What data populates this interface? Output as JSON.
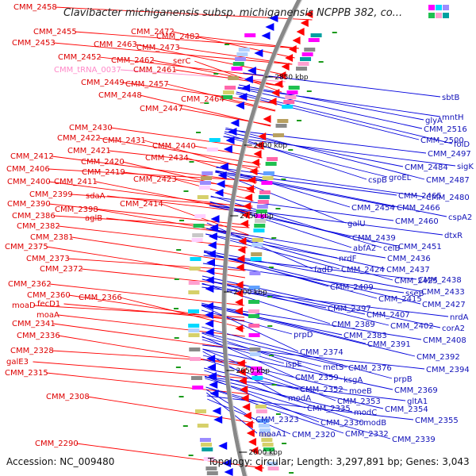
{
  "title": "Clavibacter michiganensis subsp. michiganensis NCPPB 382, co...",
  "footer": {
    "accession": "Accession: NC_009480",
    "info": "Topology: circular; Length: 3,297,891 bp; Genes: 3,043"
  },
  "scale_labels": [
    "2850 kbp",
    "2800 kbp",
    "2750 kbp",
    "2700 kbp",
    "2650 kbp",
    "2600 kbp"
  ],
  "colors": {
    "forward_strand": "#ff0000",
    "reverse_strand": "#0000ff",
    "left_label": "#dd0000",
    "right_label": "#1010b8",
    "rna_label": "#ff88c8",
    "backbone": "#888888"
  },
  "left_labels": [
    "CMM_2458",
    "CMM_2455",
    "CMM_2453",
    "CMM_2472",
    "CMM_2463",
    "CMM_2482",
    "CMM_2473",
    "CMM_2452",
    "CMM_2462",
    "serC",
    "CMM_tRNA_0037",
    "CMM_2461",
    "CMM_2449",
    "CMM_2457",
    "CMM_2448",
    "CMM_2464",
    "CMM_2447",
    "CMM_2430",
    "CMM_2422",
    "CMM_2431",
    "CMM_2440",
    "CMM_2421",
    "CMM_2434",
    "CMM_2412",
    "CMM_2420",
    "CMM_2406",
    "CMM_2419",
    "CMM_2423",
    "CMM_2400",
    "CMM_2411",
    "CMM_2399",
    "sdaA",
    "CMM_2390",
    "CMM_2398",
    "CMM_2414",
    "CMM_2386",
    "aglB",
    "CMM_2382",
    "CMM_2381",
    "CMM_2375",
    "CMM_2373",
    "CMM_2372",
    "CMM_2362",
    "CMM_2360",
    "CMM_2366",
    "moaD",
    "fecD1",
    "moaA",
    "CMM_2341",
    "CMM_2336",
    "CMM_2328",
    "galE3",
    "CMM_2315",
    "CMM_2308",
    "CMM_2290"
  ],
  "right_labels": [
    "sbtB",
    "mntH",
    "glyA",
    "CMM_2516",
    "CMM_2500",
    "folD",
    "CMM_2497",
    "sigK",
    "CMM_2484",
    "groEL",
    "cspB",
    "CMM_2487",
    "CMM_2465",
    "CMM_2480",
    "CMM_2466",
    "CMM_2454",
    "cspA2",
    "galU",
    "CMM_2460",
    "dtxR",
    "CMM_2439",
    "CMM_2451",
    "abfA2",
    "celB",
    "nrdF",
    "CMM_2436",
    "CMM_2424",
    "CMM_2437",
    "fadD",
    "CMM_2425",
    "CMM_2438",
    "sseB",
    "CMM_2409",
    "CMM_2433",
    "CMM_2415",
    "CMM_2427",
    "CMM_2397",
    "nrdA",
    "CMM_2407",
    "CMM_2389",
    "CMM_2402",
    "corA2",
    "prpD",
    "CMM_2383",
    "CMM_2408",
    "CMM_2391",
    "CMM_2374",
    "CMM_2392",
    "ispE",
    "metS",
    "CMM_2376",
    "CMM_2359",
    "ksgA",
    "prpB",
    "CMM_2394",
    "CMM_2352",
    "moeB",
    "CMM_2369",
    "modA",
    "CMM_2353",
    "gltA1",
    "CMM_2335",
    "modC",
    "CMM_2354",
    "CMM_2330",
    "modB",
    "CMM_2355",
    "CMM_2323",
    "CMM_2320",
    "moaA1",
    "CMM_2332",
    "CMM_2339"
  ]
}
